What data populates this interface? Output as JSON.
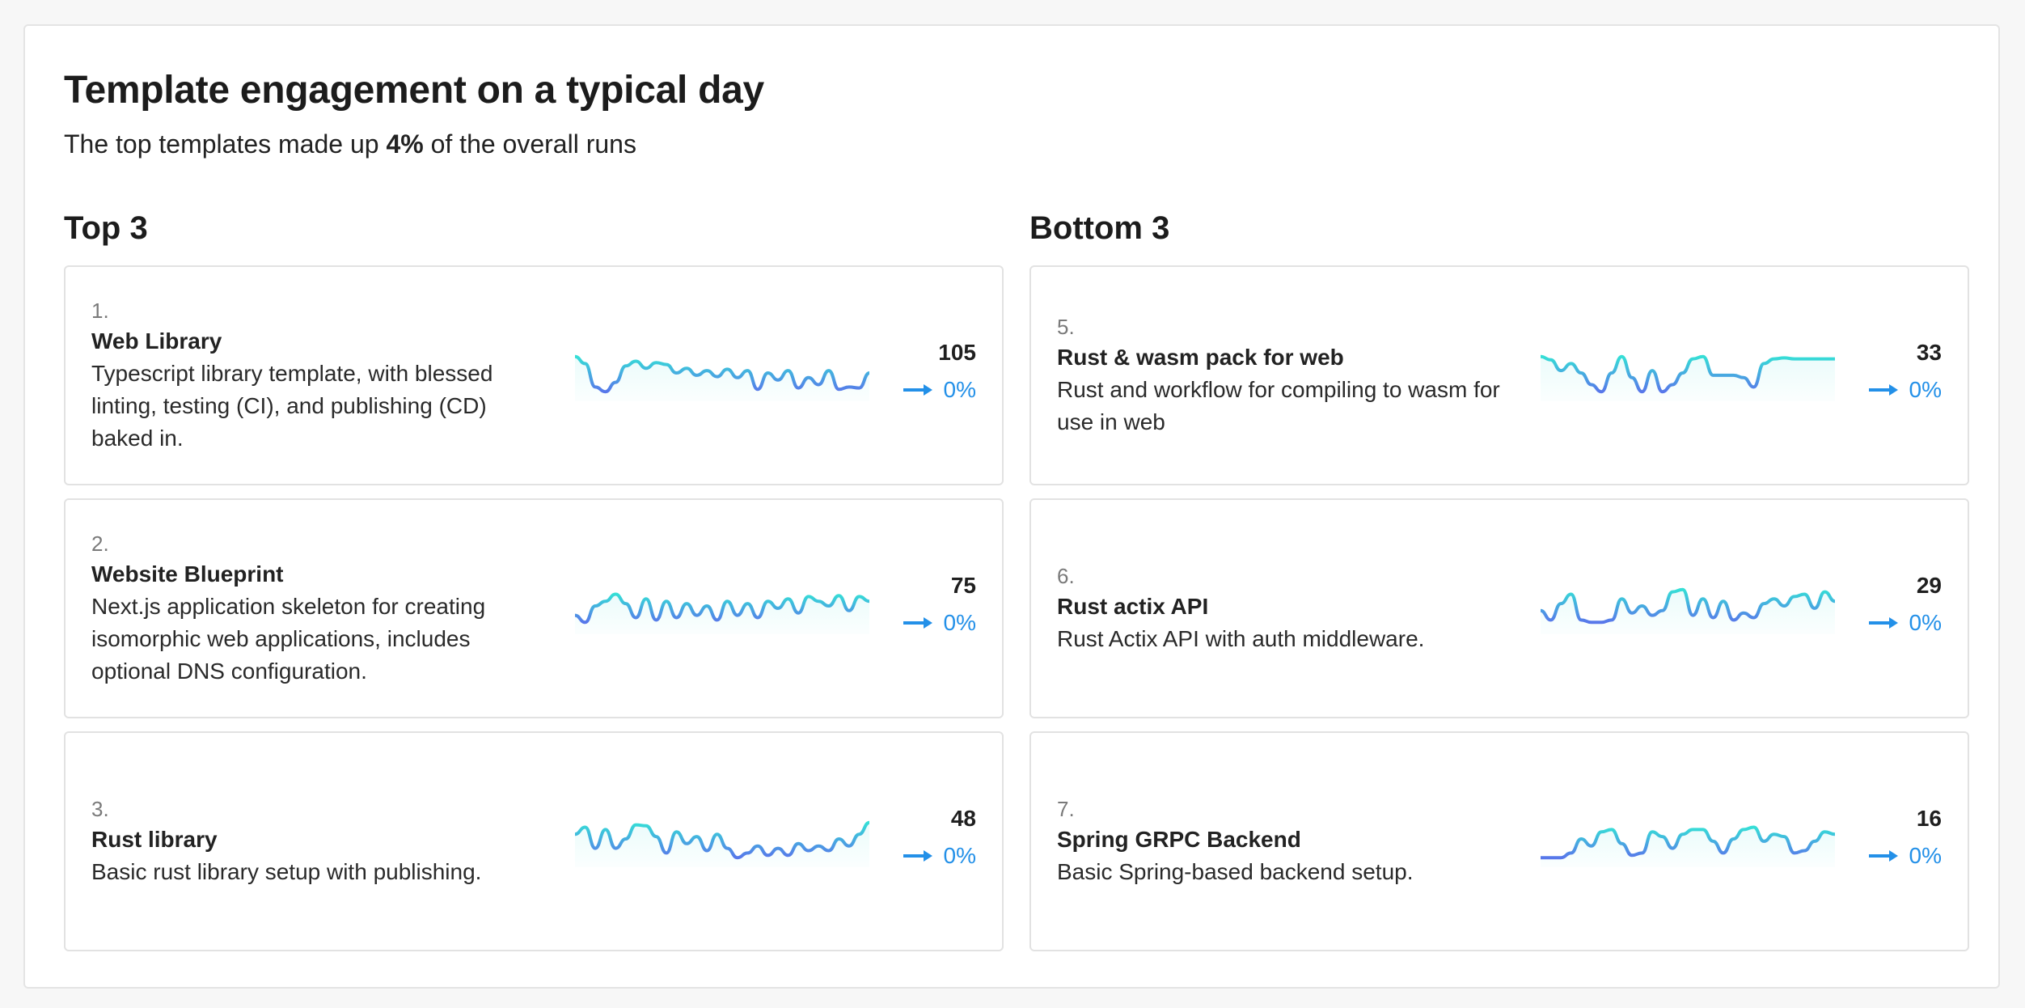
{
  "title": "Template engagement on a typical day",
  "subtitle": {
    "prefix": "The top templates made up ",
    "highlight": "4%",
    "suffix": " of the overall runs"
  },
  "sections": [
    {
      "heading": "Top 3",
      "cards": [
        {
          "rank": "1.",
          "name": "Web Library",
          "description": "Typescript library template, with blessed linting, testing (CI), and publishing (CD) baked in.",
          "count": "105",
          "change": "0%",
          "trend": [
            0.85,
            0.7,
            0.2,
            0.1,
            0.3,
            0.65,
            0.75,
            0.6,
            0.72,
            0.68,
            0.5,
            0.6,
            0.45,
            0.55,
            0.42,
            0.58,
            0.4,
            0.55,
            0.15,
            0.5,
            0.35,
            0.55,
            0.18,
            0.4,
            0.25,
            0.55,
            0.15,
            0.2,
            0.18,
            0.5
          ]
        },
        {
          "rank": "2.",
          "name": "Website Blueprint",
          "description": "Next.js application skeleton for creating isomorphic web applications, includes optional DNS configuration.",
          "count": "75",
          "change": "0%",
          "trend": [
            0.3,
            0.15,
            0.5,
            0.6,
            0.75,
            0.55,
            0.25,
            0.65,
            0.2,
            0.6,
            0.25,
            0.55,
            0.3,
            0.5,
            0.2,
            0.6,
            0.3,
            0.55,
            0.25,
            0.6,
            0.45,
            0.65,
            0.35,
            0.7,
            0.6,
            0.5,
            0.72,
            0.4,
            0.7,
            0.6
          ]
        },
        {
          "rank": "3.",
          "name": "Rust library",
          "description": "Basic rust library setup with publishing.",
          "count": "48",
          "change": "0%",
          "trend": [
            0.6,
            0.75,
            0.3,
            0.7,
            0.3,
            0.5,
            0.8,
            0.78,
            0.55,
            0.2,
            0.65,
            0.4,
            0.55,
            0.25,
            0.6,
            0.3,
            0.1,
            0.2,
            0.35,
            0.15,
            0.3,
            0.15,
            0.4,
            0.25,
            0.35,
            0.25,
            0.5,
            0.35,
            0.6,
            0.85
          ]
        }
      ]
    },
    {
      "heading": "Bottom 3",
      "cards": [
        {
          "rank": "5.",
          "name": "Rust & wasm pack for web",
          "description": "Rust and workflow for compiling to wasm for use in web",
          "count": "33",
          "change": "0%",
          "trend": [
            0.85,
            0.78,
            0.55,
            0.7,
            0.5,
            0.25,
            0.1,
            0.5,
            0.85,
            0.4,
            0.1,
            0.55,
            0.1,
            0.25,
            0.5,
            0.8,
            0.85,
            0.45,
            0.45,
            0.45,
            0.4,
            0.2,
            0.7,
            0.8,
            0.82,
            0.8,
            0.8,
            0.8,
            0.8,
            0.8
          ]
        },
        {
          "rank": "6.",
          "name": "Rust actix API",
          "description": "Rust Actix API with auth middleware.",
          "count": "29",
          "change": "0%",
          "trend": [
            0.4,
            0.2,
            0.55,
            0.75,
            0.2,
            0.15,
            0.15,
            0.2,
            0.65,
            0.35,
            0.5,
            0.3,
            0.4,
            0.8,
            0.85,
            0.3,
            0.65,
            0.25,
            0.6,
            0.2,
            0.35,
            0.25,
            0.55,
            0.65,
            0.5,
            0.7,
            0.75,
            0.45,
            0.8,
            0.6
          ]
        },
        {
          "rank": "7.",
          "name": "Spring GRPC Backend",
          "description": "Basic Spring-based backend setup.",
          "count": "16",
          "change": "0%",
          "trend": [
            0.1,
            0.1,
            0.1,
            0.2,
            0.5,
            0.35,
            0.65,
            0.7,
            0.4,
            0.15,
            0.2,
            0.65,
            0.55,
            0.3,
            0.6,
            0.7,
            0.7,
            0.45,
            0.2,
            0.5,
            0.7,
            0.75,
            0.45,
            0.6,
            0.55,
            0.2,
            0.25,
            0.45,
            0.65,
            0.6
          ]
        }
      ]
    }
  ],
  "colors": {
    "accent": "#2390e8",
    "trend_start": "#35dfd6",
    "trend_end": "#5877ea"
  },
  "icons": {
    "change": "arrow-right-icon"
  }
}
